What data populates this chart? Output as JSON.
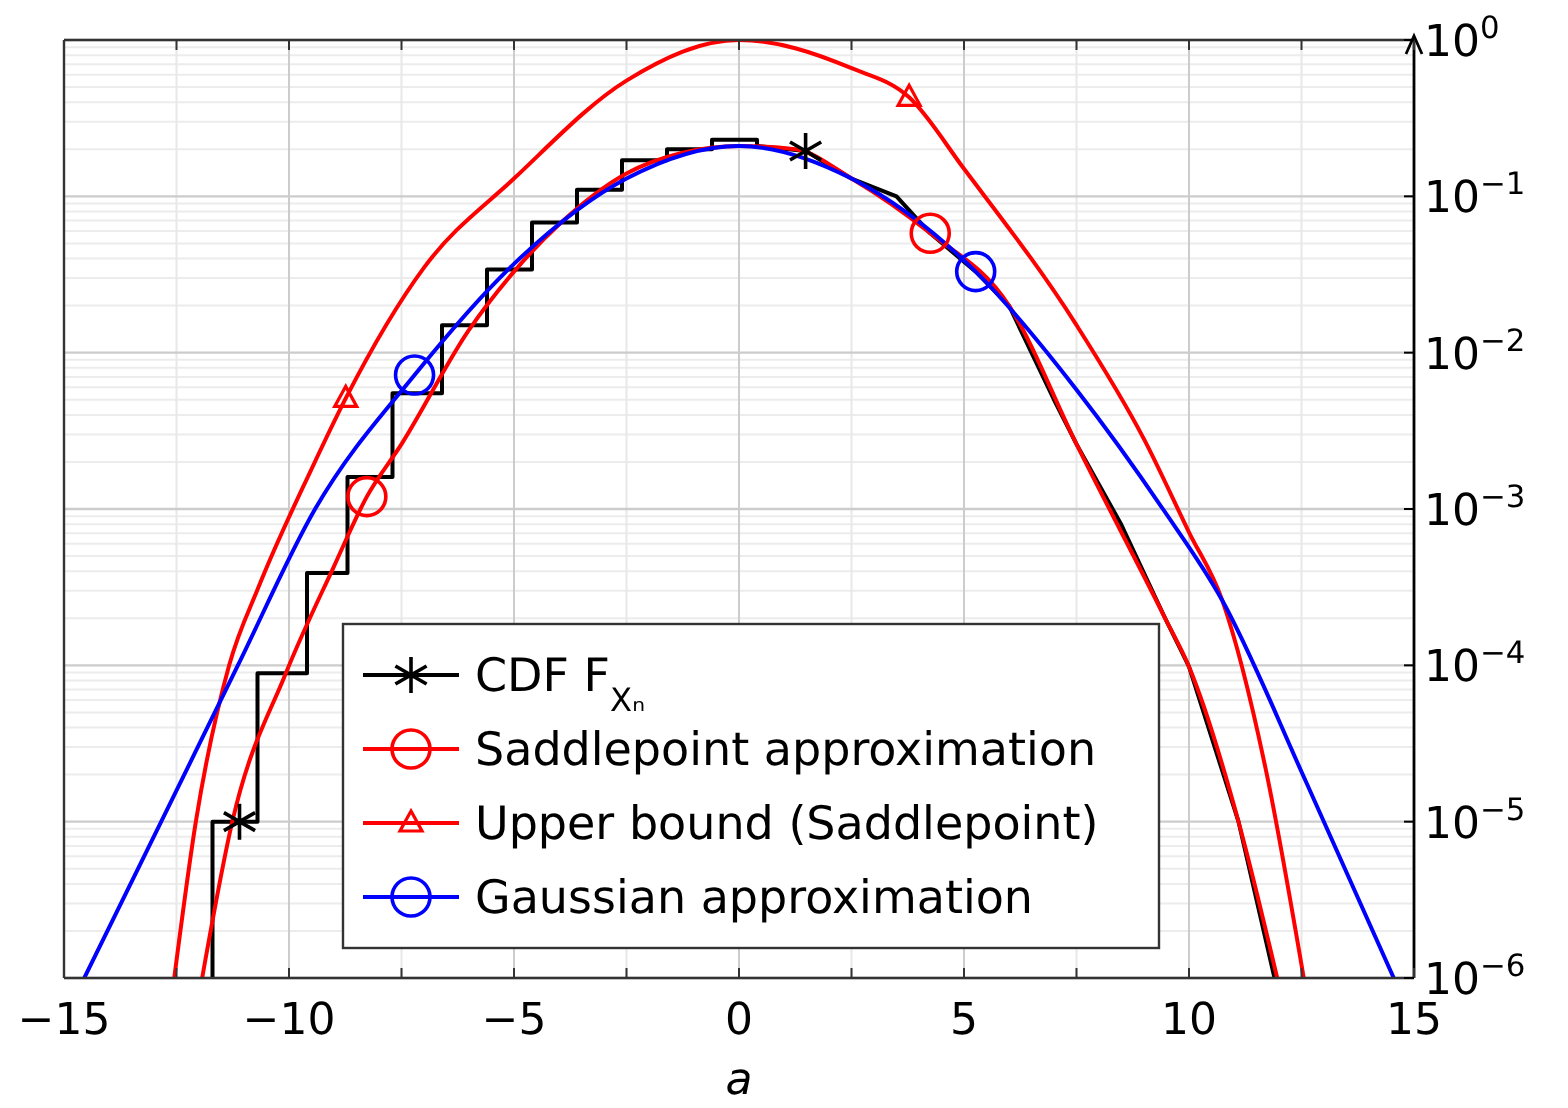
{
  "chart_data": {
    "type": "line",
    "xlabel": "a",
    "xlim": [
      -15,
      15
    ],
    "ylim": [
      1e-06,
      1
    ],
    "log": "y",
    "grid": true,
    "legend": "bottom",
    "line_style": "solid",
    "xticks": [
      {
        "value": -15,
        "label": "−15"
      },
      {
        "value": -12.5,
        "label": null
      },
      {
        "value": -10,
        "label": "−10"
      },
      {
        "value": -7.5,
        "label": null
      },
      {
        "value": -5,
        "label": "−5"
      },
      {
        "value": -2.5,
        "label": null
      },
      0,
      {
        "value": 2.5,
        "label": null
      },
      5,
      {
        "value": 7.5,
        "label": null
      },
      10,
      {
        "value": 12.5,
        "label": null
      },
      15
    ],
    "yticks": [
      {
        "value": 1e-06,
        "label": "10$^{−6}$"
      },
      {
        "value": 1e-05,
        "label": "10$^{−5}$"
      },
      {
        "value": 0.0001,
        "label": "10$^{−4}$"
      },
      {
        "value": 0.001,
        "label": "10$^{−3}$"
      },
      {
        "value": 0.01,
        "label": "10$^{−2}$"
      },
      {
        "value": 0.1,
        "label": "10$^{−1}$"
      },
      {
        "value": 1,
        "label": "10$^{0}$"
      }
    ],
    "series": [
      {
        "name": "CDF F$_{Xₙ}$",
        "type": "line",
        "color": "#000000",
        "x": [
          -11.7,
          -11.7,
          -10.7,
          -10.7,
          -9.6,
          -9.6,
          -8.7,
          -8.7,
          -7.7,
          -7.7,
          -6.6,
          -6.6,
          -5.6,
          -5.6,
          -4.6,
          -4.6,
          -3.6,
          -3.6,
          -2.6,
          -2.6,
          -1.6,
          -1.6,
          -0.6,
          -0.6,
          0.4,
          0.4,
          1.48,
          2.5,
          3.5,
          4.25,
          5.26,
          6,
          7,
          7.5,
          8.5,
          9.47,
          10,
          11.1,
          11.9
        ],
        "values": [
          1e-06,
          1e-05,
          1e-05,
          8.9e-05,
          8.9e-05,
          0.00039,
          0.00039,
          0.0016,
          0.0016,
          0.0055,
          0.0055,
          0.015,
          0.015,
          0.034,
          0.034,
          0.068,
          0.068,
          0.11,
          0.11,
          0.17,
          0.17,
          0.2,
          0.2,
          0.23,
          0.23,
          0.21,
          0.195,
          0.13,
          0.1,
          0.058,
          0.033,
          0.02,
          0.005,
          0.0026,
          0.00079,
          0.0002,
          9.8e-05,
          1e-05,
          1e-06
        ]
      },
      {
        "name": "Saddlepoint approximation",
        "type": "line",
        "color": "#ff0000",
        "x": [
          -11.93,
          -11.26,
          -10.07,
          -9,
          -8.27,
          -7.5,
          -6,
          -5,
          -4,
          -2.5,
          -1.25,
          0,
          1.25,
          2.5,
          4.25,
          6,
          7.5,
          9.47,
          10,
          11.1,
          11.96
        ],
        "values": [
          1e-06,
          1e-05,
          8.9e-05,
          0.00043,
          0.0012,
          0.0026,
          0.014,
          0.033,
          0.066,
          0.14,
          0.19,
          0.21,
          0.2,
          0.13,
          0.058,
          0.02,
          0.0026,
          0.0002,
          9.8e-05,
          1e-05,
          1e-06
        ]
      },
      {
        "name": "Upper bound (Saddlepoint)",
        "type": "line",
        "color": "#ff0000",
        "x": [
          -12.55,
          -12.07,
          -11.33,
          -10.67,
          -9.5,
          -8.74,
          -7,
          -5,
          -2.5,
          0,
          2.5,
          3.78,
          5,
          7.5,
          9,
          10,
          10.74,
          11.7,
          12.55
        ],
        "values": [
          1e-06,
          1e-05,
          0.0001,
          0.00032,
          0.0018,
          0.0051,
          0.035,
          0.13,
          0.55,
          1,
          0.66,
          0.43,
          0.15,
          0.015,
          0.0028,
          0.00071,
          0.00026,
          2.2e-05,
          1e-06
        ]
      },
      {
        "name": "Gaussian approximation",
        "type": "line",
        "color": "#0000ff",
        "x": [
          -14.55,
          -12.84,
          -11.15,
          -9.42,
          -7.21,
          -5,
          -2.5,
          0,
          2.5,
          5.26,
          7.5,
          9.42,
          10.74,
          12.6,
          14.55
        ],
        "values": [
          1e-06,
          1e-05,
          9.8e-05,
          0.001,
          0.0072,
          0.037,
          0.13,
          0.21,
          0.13,
          0.033,
          0.0058,
          0.001,
          0.00026,
          1.8e-05,
          1e-06
        ]
      },
      {
        "type": "scatter",
        "color": "#000000",
        "marker": "cross",
        "x": [
          -11.1,
          1.48
        ],
        "values": [
          1e-05,
          0.195
        ]
      },
      {
        "type": "scatter",
        "color": "#ff0000",
        "marker": "circle",
        "x": [
          -8.27,
          4.25
        ],
        "values": [
          0.0012,
          0.058
        ]
      },
      {
        "type": "scatter",
        "color": "#ff0000",
        "marker": "triangle",
        "x": [
          -8.74,
          3.78
        ],
        "values": [
          0.0051,
          0.43
        ]
      },
      {
        "type": "scatter",
        "color": "#0000ff",
        "marker": "circle",
        "x": [
          -7.21,
          5.26
        ],
        "values": [
          0.0072,
          0.033
        ]
      }
    ]
  }
}
